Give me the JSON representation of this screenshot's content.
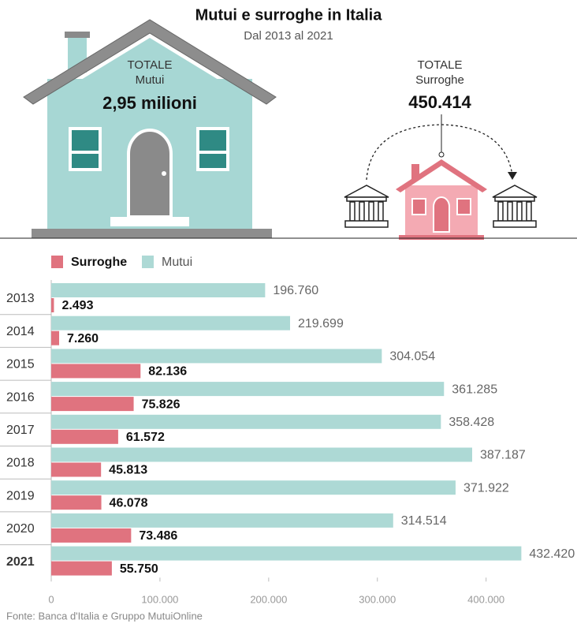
{
  "chart_data": {
    "type": "bar",
    "title": "Mutui e surroghe in Italia",
    "subtitle": "Dal 2013 al 2021",
    "annotations": {
      "mutui": {
        "line1": "TOTALE",
        "line2": "Mutui",
        "value": "2,95 milioni"
      },
      "surroghe": {
        "line1": "TOTALE",
        "line2": "Surroghe",
        "value": "450.414"
      }
    },
    "categories": [
      "2013",
      "2014",
      "2015",
      "2016",
      "2017",
      "2018",
      "2019",
      "2020",
      "2021"
    ],
    "series": [
      {
        "name": "Surroghe",
        "color": "#e0737f",
        "values": [
          2493,
          7260,
          82136,
          75826,
          61572,
          45813,
          46078,
          73486,
          55750
        ],
        "value_labels": [
          "2.493",
          "7.260",
          "82.136",
          "75.826",
          "61.572",
          "45.813",
          "46.078",
          "73.486",
          "55.750"
        ]
      },
      {
        "name": "Mutui",
        "color": "#add9d5",
        "values": [
          196760,
          219699,
          304054,
          361285,
          358428,
          387187,
          371922,
          314514,
          432420
        ],
        "value_labels": [
          "196.760",
          "219.699",
          "304.054",
          "361.285",
          "358.428",
          "387.187",
          "371.922",
          "314.514",
          "432.420"
        ]
      }
    ],
    "xlim": [
      0,
      480000
    ],
    "xticks": [
      0,
      {
        "value": 100000,
        "label": "100.000"
      },
      {
        "value": 200000,
        "label": "200.000"
      },
      {
        "value": 300000,
        "label": "300.000"
      },
      {
        "value": 400000,
        "label": "400.000"
      }
    ],
    "source": "Fonte: Banca d'Italia e Gruppo MutuiOnline"
  }
}
